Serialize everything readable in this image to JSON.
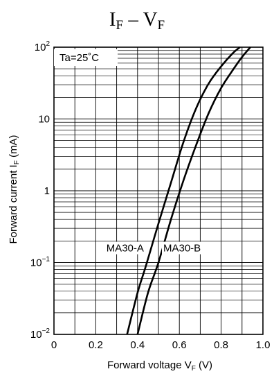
{
  "chart_data": {
    "type": "line",
    "title": {
      "main": "I",
      "main_sub": "F",
      "sep": " – ",
      "second": "V",
      "second_sub": "F"
    },
    "condition": "Ta=25˚C",
    "xlabel": {
      "text": "Forward voltage  V",
      "sub": "F",
      "unit": "  (V)"
    },
    "ylabel": {
      "text": "Forward current  I",
      "sub": "F",
      "unit": "  (mA)"
    },
    "x_scale": "linear",
    "y_scale": "log",
    "xlim": [
      0,
      1.0
    ],
    "ylim": [
      0.01,
      100
    ],
    "x_ticks": [
      {
        "value": 0,
        "label": "0"
      },
      {
        "value": 0.2,
        "label": "0.2"
      },
      {
        "value": 0.4,
        "label": "0.4"
      },
      {
        "value": 0.6,
        "label": "0.6"
      },
      {
        "value": 0.8,
        "label": "0.8"
      },
      {
        "value": 1.0,
        "label": "1.0"
      }
    ],
    "y_ticks": [
      {
        "value": 0.01,
        "base": "10",
        "exp": "−2"
      },
      {
        "value": 0.1,
        "base": "10",
        "exp": "−1"
      },
      {
        "value": 1,
        "base": "1",
        "exp": ""
      },
      {
        "value": 10,
        "base": "10",
        "exp": ""
      },
      {
        "value": 100,
        "base": "10",
        "exp": "2"
      }
    ],
    "grid": true,
    "series": [
      {
        "name": "MA30-A",
        "x": [
          0.35,
          0.4,
          0.44,
          0.5,
          0.56,
          0.62,
          0.68,
          0.74,
          0.8,
          0.855,
          0.89
        ],
        "y": [
          0.01,
          0.038,
          0.09,
          0.35,
          1.3,
          4.8,
          14,
          31,
          54,
          82,
          100
        ]
      },
      {
        "name": "MA30-B",
        "x": [
          0.4,
          0.45,
          0.5,
          0.56,
          0.62,
          0.68,
          0.74,
          0.8,
          0.86,
          0.9,
          0.94
        ],
        "y": [
          0.01,
          0.038,
          0.1,
          0.4,
          1.4,
          4.3,
          12,
          27,
          50,
          73,
          100
        ]
      }
    ]
  }
}
